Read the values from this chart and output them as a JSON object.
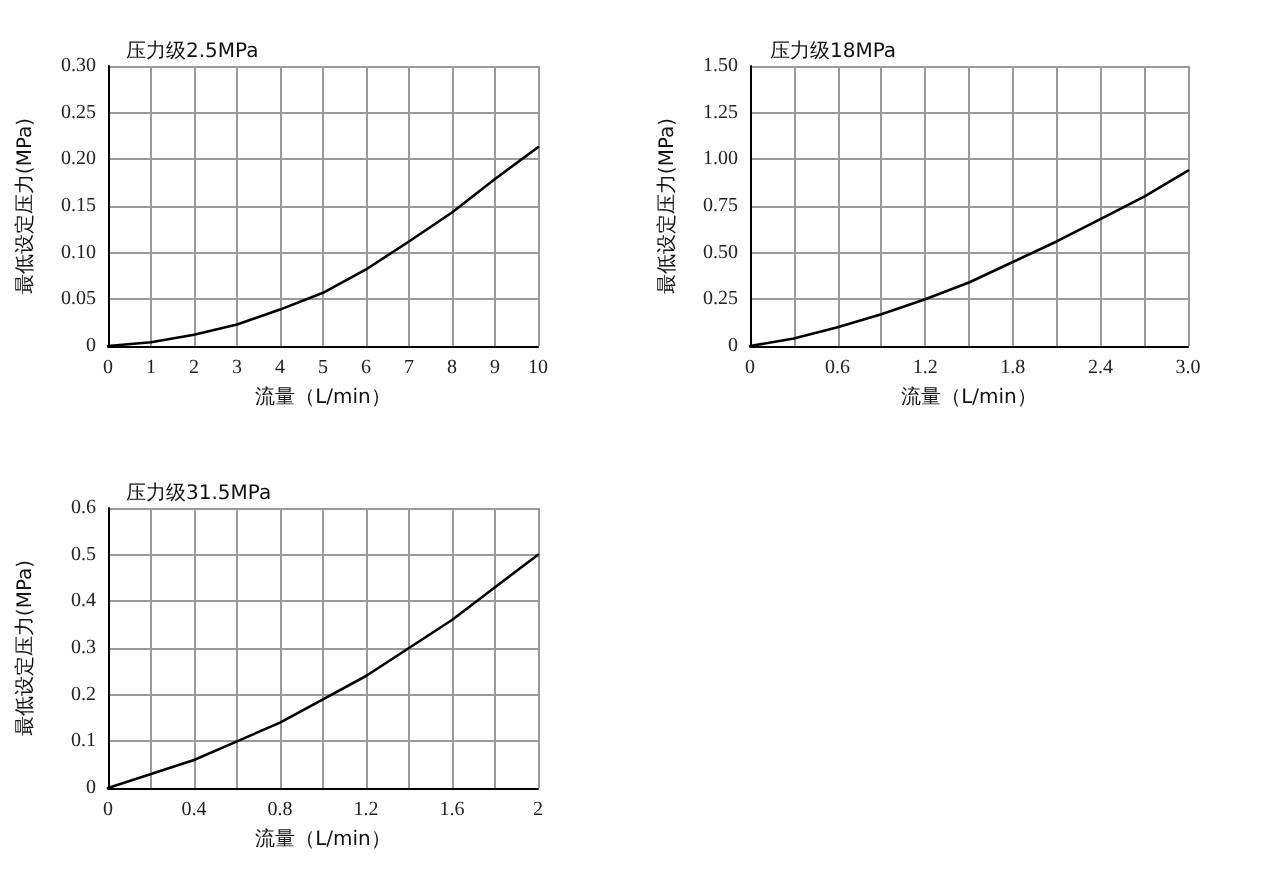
{
  "chart_data": [
    {
      "type": "line",
      "title": "压力级2.5MPa",
      "xlabel": "流量（L/min）",
      "ylabel": "最低设定压力(MPa)",
      "grid": true,
      "marker": "none",
      "line_style": "solid",
      "xlim": [
        0,
        10
      ],
      "ylim": [
        0,
        0.3
      ],
      "xticks": [
        0,
        1,
        2,
        3,
        4,
        5,
        6,
        7,
        8,
        9,
        10
      ],
      "yticks": [
        0,
        {
          "value": 0.05,
          "label": "0.05"
        },
        {
          "value": 0.1,
          "label": "0.10"
        },
        {
          "value": 0.15,
          "label": "0.15"
        },
        {
          "value": 0.2,
          "label": "0.20"
        },
        {
          "value": 0.25,
          "label": "0.25"
        },
        {
          "value": 0.3,
          "label": "0.30"
        }
      ],
      "series": [
        {
          "color": "#000000",
          "x": [
            0,
            1,
            2,
            3,
            4,
            5,
            6,
            7,
            8,
            9,
            10
          ],
          "values": [
            0,
            0.004,
            0.012,
            0.023,
            0.039,
            0.057,
            0.082,
            0.112,
            0.143,
            0.179,
            0.213
          ]
        }
      ]
    },
    {
      "type": "line",
      "title": "压力级18MPa",
      "xlabel": "流量（L/min）",
      "ylabel": "最低设定压力(MPa)",
      "grid": true,
      "marker": "none",
      "line_style": "solid",
      "xlim": [
        0,
        3
      ],
      "ylim": [
        0,
        1.5
      ],
      "xticks": [
        0,
        {
          "value": 0.3,
          "label": null
        },
        0.6,
        {
          "value": 0.9,
          "label": null
        },
        1.2,
        {
          "value": 1.5,
          "label": null
        },
        1.8,
        {
          "value": 2.1,
          "label": null
        },
        2.4,
        {
          "value": 2.7,
          "label": null
        },
        {
          "value": 3,
          "label": "3.0"
        }
      ],
      "yticks": [
        0,
        0.25,
        {
          "value": 0.5,
          "label": "0.50"
        },
        0.75,
        {
          "value": 1,
          "label": "1.00"
        },
        1.25,
        {
          "value": 1.5,
          "label": "1.50"
        }
      ],
      "series": [
        {
          "color": "#000000",
          "x": [
            0,
            0.3,
            0.6,
            0.9,
            1.2,
            1.5,
            1.8,
            2.1,
            2.4,
            2.7,
            3
          ],
          "values": [
            0,
            0.04,
            0.1,
            0.17,
            0.25,
            0.34,
            0.45,
            0.56,
            0.68,
            0.8,
            0.94
          ]
        }
      ]
    },
    {
      "type": "line",
      "title": "压力级31.5MPa",
      "xlabel": "流量（L/min）",
      "ylabel": "最低设定压力(MPa)",
      "grid": true,
      "marker": "none",
      "line_style": "solid",
      "xlim": [
        0,
        2
      ],
      "ylim": [
        0,
        0.6
      ],
      "xticks": [
        0,
        {
          "value": 0.2,
          "label": null
        },
        0.4,
        {
          "value": 0.6,
          "label": null
        },
        0.8,
        {
          "value": 1,
          "label": null
        },
        1.2,
        {
          "value": 1.4,
          "label": null
        },
        1.6,
        {
          "value": 1.8,
          "label": null
        },
        2
      ],
      "yticks": [
        0,
        0.1,
        0.2,
        0.3,
        0.4,
        0.5,
        0.6
      ],
      "series": [
        {
          "color": "#000000",
          "x": [
            0,
            0.2,
            0.4,
            0.6,
            0.8,
            1,
            1.2,
            1.4,
            1.6,
            1.8,
            2
          ],
          "values": [
            0,
            0.03,
            0.06,
            0.1,
            0.14,
            0.19,
            0.24,
            0.3,
            0.36,
            0.43,
            0.5
          ]
        }
      ]
    }
  ]
}
